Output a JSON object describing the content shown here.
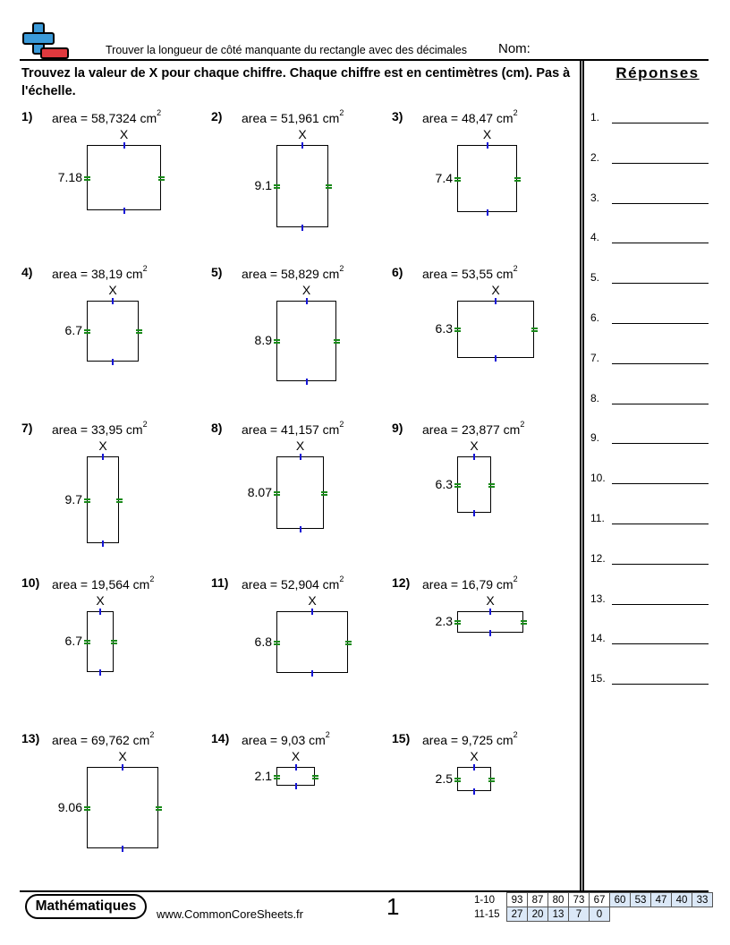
{
  "header": {
    "title": "Trouver la longueur de côté manquante du rectangle avec des décimales",
    "name_label": "Nom:",
    "instructions": "Trouvez la valeur de X pour chaque chiffre. Chaque chiffre est en centimètres (cm). Pas à l'échelle."
  },
  "answers": {
    "title": "Réponses",
    "numbers": [
      "1.",
      "2.",
      "3.",
      "4.",
      "5.",
      "6.",
      "7.",
      "8.",
      "9.",
      "10.",
      "11.",
      "12.",
      "13.",
      "14.",
      "15."
    ]
  },
  "unit": "cm",
  "unknown_label": "X",
  "problems": [
    {
      "num": "1)",
      "area": "area = 58,7324 cm",
      "side": "7.18"
    },
    {
      "num": "2)",
      "area": "area = 51,961 cm",
      "side": "9.1"
    },
    {
      "num": "3)",
      "area": "area = 48,47 cm",
      "side": "7.4"
    },
    {
      "num": "4)",
      "area": "area = 38,19 cm",
      "side": "6.7"
    },
    {
      "num": "5)",
      "area": "area = 58,829 cm",
      "side": "8.9"
    },
    {
      "num": "6)",
      "area": "area = 53,55 cm",
      "side": "6.3"
    },
    {
      "num": "7)",
      "area": "area = 33,95 cm",
      "side": "9.7"
    },
    {
      "num": "8)",
      "area": "area = 41,157 cm",
      "side": "8.07"
    },
    {
      "num": "9)",
      "area": "area = 23,877 cm",
      "side": "6.3"
    },
    {
      "num": "10)",
      "area": "area = 19,564 cm",
      "side": "6.7"
    },
    {
      "num": "11)",
      "area": "area = 52,904 cm",
      "side": "6.8"
    },
    {
      "num": "12)",
      "area": "area = 16,79 cm",
      "side": "2.3"
    },
    {
      "num": "13)",
      "area": "area = 69,762 cm",
      "side": "9.06"
    },
    {
      "num": "14)",
      "area": "area = 9,03 cm",
      "side": "2.1"
    },
    {
      "num": "15)",
      "area": "area = 9,725 cm",
      "side": "2.5"
    }
  ],
  "superscript": "2",
  "footer": {
    "badge": "Mathématiques",
    "site": "www.CommonCoreSheets.fr",
    "page": "1",
    "score_rows": [
      {
        "label": "1-10",
        "values": [
          "93",
          "87",
          "80",
          "73",
          "67",
          "60",
          "53",
          "47",
          "40",
          "33"
        ]
      },
      {
        "label": "11-15",
        "values": [
          "27",
          "20",
          "13",
          "7",
          "0"
        ]
      }
    ]
  },
  "colors": {
    "blue_tick": "#1515d6",
    "green_tick": "#1a8a1a",
    "logo_blue": "#3a9ad9",
    "logo_red": "#e0393e"
  }
}
